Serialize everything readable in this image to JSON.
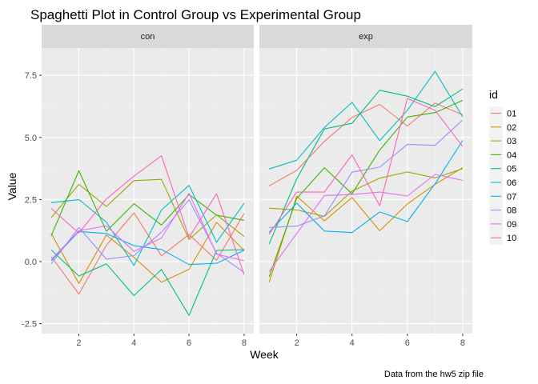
{
  "chart_data": {
    "type": "line",
    "title": "Spaghetti Plot in Control Group vs Experimental Group",
    "xlabel": "Week",
    "ylabel": "Value",
    "caption": "Data from the hw5 zip file",
    "xlim": [
      0.65,
      8.35
    ],
    "ylim": [
      -2.9,
      8.6
    ],
    "x_ticks": [
      2,
      4,
      6,
      8
    ],
    "y_ticks": [
      -2.5,
      0.0,
      2.5,
      5.0,
      7.5
    ],
    "y_tick_labels": [
      "-2.5",
      "0.0",
      "2.5",
      "5.0",
      "7.5"
    ],
    "x": [
      1,
      2,
      3,
      4,
      5,
      6,
      7,
      8
    ],
    "panels": [
      {
        "label": "con",
        "series": [
          {
            "name": "01",
            "values": [
              0.2,
              -1.31,
              0.66,
              1.96,
              0.23,
              1.09,
              0.05,
              1.94
            ]
          },
          {
            "name": "02",
            "values": [
              1.13,
              -0.88,
              1.07,
              0.17,
              -0.83,
              -0.31,
              1.58,
              0.44
            ]
          },
          {
            "name": "03",
            "values": [
              1.77,
              3.11,
              2.22,
              3.26,
              3.31,
              0.89,
              1.88,
              1.01
            ]
          },
          {
            "name": "04",
            "values": [
              1.04,
              3.66,
              1.22,
              2.33,
              1.47,
              2.7,
              1.87,
              1.66
            ]
          },
          {
            "name": "05",
            "values": [
              0.47,
              -0.58,
              -0.09,
              -1.37,
              -0.32,
              -2.17,
              0.45,
              0.48
            ]
          },
          {
            "name": "06",
            "values": [
              2.37,
              2.5,
              1.59,
              -0.16,
              2.08,
              3.07,
              0.78,
              2.35
            ]
          },
          {
            "name": "07",
            "values": [
              0.03,
              1.21,
              1.13,
              0.64,
              0.49,
              -0.12,
              -0.07,
              0.46
            ]
          },
          {
            "name": "08",
            "values": [
              -0.09,
              1.37,
              0.1,
              0.24,
              1.18,
              2.49,
              0.34,
              -0.44
            ]
          },
          {
            "name": "09",
            "values": [
              0.08,
              1.24,
              1.44,
              0.41,
              0.95,
              2.75,
              0.3,
              0.03
            ]
          },
          {
            "name": "10",
            "values": [
              2.14,
              1.15,
              2.52,
              3.44,
              4.26,
              0.97,
              2.73,
              -0.53
            ]
          }
        ]
      },
      {
        "label": "exp",
        "series": [
          {
            "name": "01",
            "values": [
              3.05,
              3.67,
              4.84,
              5.8,
              6.33,
              5.46,
              6.38,
              5.91
            ]
          },
          {
            "name": "02",
            "values": [
              -0.84,
              2.63,
              1.64,
              2.58,
              1.24,
              2.32,
              3.11,
              3.78
            ]
          },
          {
            "name": "03",
            "values": [
              2.15,
              2.08,
              1.82,
              2.84,
              3.36,
              3.61,
              3.37,
              3.74
            ]
          },
          {
            "name": "04",
            "values": [
              -0.62,
              2.54,
              3.78,
              2.73,
              4.49,
              5.82,
              6.0,
              6.49
            ]
          },
          {
            "name": "05",
            "values": [
              0.7,
              3.33,
              5.34,
              5.57,
              6.9,
              6.66,
              6.24,
              6.95
            ]
          },
          {
            "name": "06",
            "values": [
              3.73,
              4.08,
              5.4,
              6.41,
              4.87,
              6.09,
              7.66,
              5.83
            ]
          },
          {
            "name": "07",
            "values": [
              1.18,
              2.35,
              1.23,
              1.17,
              2.0,
              1.61,
              3.13,
              4.88
            ]
          },
          {
            "name": "08",
            "values": [
              1.37,
              1.43,
              1.84,
              3.6,
              3.8,
              4.72,
              4.68,
              5.7
            ]
          },
          {
            "name": "09",
            "values": [
              -0.4,
              1.13,
              2.66,
              2.7,
              2.8,
              2.64,
              3.51,
              3.27
            ]
          },
          {
            "name": "10",
            "values": [
              1.09,
              2.8,
              2.8,
              4.3,
              2.25,
              6.57,
              6.09,
              4.64
            ]
          }
        ]
      }
    ],
    "legend": {
      "title": "id",
      "position": "right",
      "items": [
        {
          "label": "01",
          "color": "#F8766D"
        },
        {
          "label": "02",
          "color": "#D89000"
        },
        {
          "label": "03",
          "color": "#A3A500"
        },
        {
          "label": "04",
          "color": "#39B600"
        },
        {
          "label": "05",
          "color": "#00BF7D"
        },
        {
          "label": "06",
          "color": "#00BFC4"
        },
        {
          "label": "07",
          "color": "#00B0F6"
        },
        {
          "label": "08",
          "color": "#9590FF"
        },
        {
          "label": "09",
          "color": "#E76BF3"
        },
        {
          "label": "10",
          "color": "#FF62BC"
        }
      ]
    },
    "grid": true,
    "colors": {
      "panel_background": "#EBEBEB",
      "strip_background": "#D9D9D9",
      "grid_major": "#FFFFFF",
      "grid_minor": "#F5F5F5"
    }
  }
}
